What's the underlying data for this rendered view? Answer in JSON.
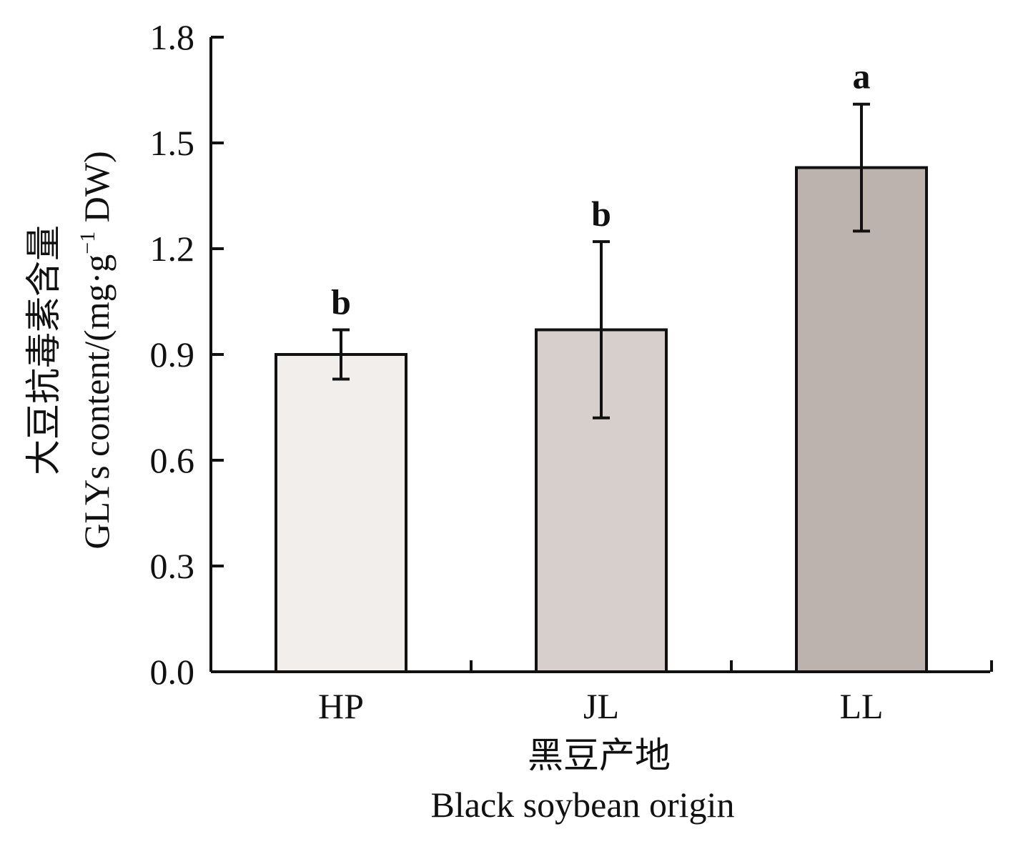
{
  "chart_data": {
    "type": "bar",
    "categories": [
      "HP",
      "JL",
      "LL"
    ],
    "values": [
      0.9,
      0.97,
      1.43
    ],
    "error_low": [
      0.83,
      0.72,
      1.25
    ],
    "error_high": [
      0.97,
      1.22,
      1.61
    ],
    "significance": [
      "b",
      "b",
      "a"
    ],
    "bar_colors": [
      "#f2eeeb",
      "#d7cfcc",
      "#bcb3ae"
    ],
    "ylim": [
      0,
      1.8
    ],
    "yticks": [
      "0.0",
      "0.3",
      "0.6",
      "0.9",
      "1.2",
      "1.5",
      "1.8"
    ],
    "ylabel_cn": "大豆抗毒素含量",
    "ylabel_en": "GLYs content/(mg·g",
    "ylabel_sup": "−1",
    "ylabel_tail": " DW)",
    "xlabel_cn": "黑豆产地",
    "xlabel_en": "Black soybean origin",
    "title": "",
    "grid": false,
    "legend": "none"
  }
}
